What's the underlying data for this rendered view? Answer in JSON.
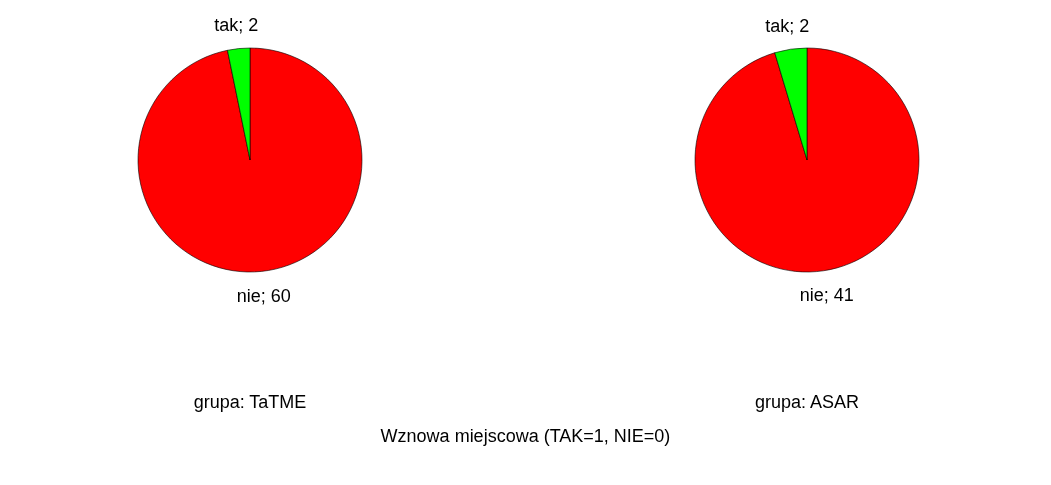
{
  "chart_data": [
    {
      "type": "pie",
      "xlabel": "grupa: TaTME",
      "categories": [
        "nie; 60",
        "tak; 2"
      ],
      "values": [
        60,
        2
      ],
      "colors": [
        "#ff0000",
        "#00ff00"
      ],
      "annotations": [
        "Wznowa miejscowa (TAK=1, NIE=0)"
      ]
    },
    {
      "type": "pie",
      "xlabel": "grupa: ASAR",
      "categories": [
        "nie; 41",
        "tak; 2"
      ],
      "values": [
        41,
        2
      ],
      "colors": [
        "#ff0000",
        "#00ff00"
      ]
    }
  ]
}
